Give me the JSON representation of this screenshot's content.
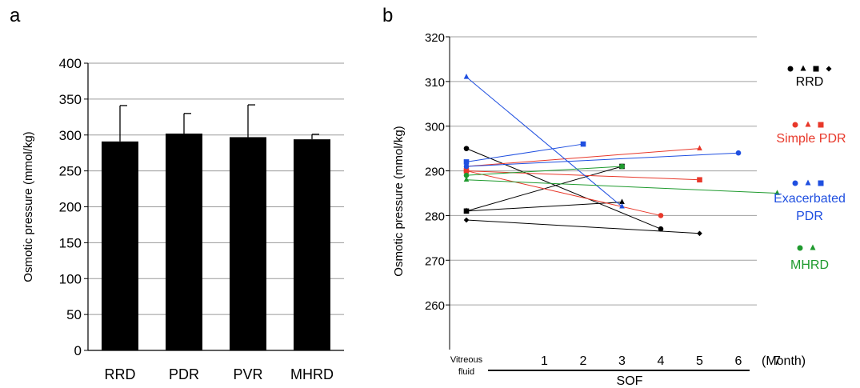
{
  "panels": {
    "a": "a",
    "b": "b"
  },
  "chart_data": [
    {
      "type": "bar",
      "categories": [
        "RRD",
        "PDR",
        "PVR",
        "MHRD"
      ],
      "values": [
        291,
        302,
        297,
        294
      ],
      "errors": [
        50,
        28,
        45,
        7
      ],
      "ylabel": "Osmotic pressure (mmol/kg)",
      "ylim": [
        0,
        400
      ],
      "yticks": [
        0,
        50,
        100,
        150,
        200,
        250,
        300,
        350,
        400
      ],
      "grid": true,
      "bar_color": "#000000"
    },
    {
      "type": "line",
      "ylabel": "Osmotic pressure (mmol/kg)",
      "ylim": [
        250,
        320
      ],
      "yticks": [
        260,
        270,
        280,
        290,
        300,
        310,
        320
      ],
      "xlim": [
        0,
        7
      ],
      "x_categories": [
        {
          "x": 0,
          "label": "Vitreous fluid"
        },
        {
          "x": 1,
          "label": "1"
        },
        {
          "x": 2,
          "label": "2"
        },
        {
          "x": 3,
          "label": "3"
        },
        {
          "x": 4,
          "label": "4"
        },
        {
          "x": 5,
          "label": "5"
        },
        {
          "x": 6,
          "label": "6"
        },
        {
          "x": 7,
          "label": "7"
        }
      ],
      "x_unit": "(Month)",
      "xlabel": "SOF",
      "grid": true,
      "groups": [
        {
          "name": "RRD",
          "color": "#000000",
          "legend_markers": [
            "circle",
            "triangle",
            "square",
            "diamond"
          ]
        },
        {
          "name": "Simple PDR",
          "color": "#e8382a",
          "legend_markers": [
            "circle",
            "triangle",
            "square"
          ]
        },
        {
          "name": "Exacerbated PDR",
          "color": "#1f4fe0",
          "legend_markers": [
            "circle",
            "triangle",
            "square"
          ]
        },
        {
          "name": "MHRD",
          "color": "#1f9a2e",
          "legend_markers": [
            "circle",
            "triangle"
          ]
        }
      ],
      "series": [
        {
          "group": "RRD",
          "marker": "circle",
          "points": [
            [
              0,
              295
            ],
            [
              4,
              277
            ]
          ]
        },
        {
          "group": "RRD",
          "marker": "triangle",
          "points": [
            [
              0,
              281
            ],
            [
              3,
              283
            ]
          ]
        },
        {
          "group": "RRD",
          "marker": "square",
          "points": [
            [
              0,
              281
            ],
            [
              3,
              291
            ]
          ]
        },
        {
          "group": "RRD",
          "marker": "diamond",
          "points": [
            [
              0,
              279
            ],
            [
              5,
              276
            ]
          ]
        },
        {
          "group": "Simple PDR",
          "marker": "circle",
          "points": [
            [
              0,
              290
            ],
            [
              4,
              280
            ]
          ]
        },
        {
          "group": "Simple PDR",
          "marker": "triangle",
          "points": [
            [
              0,
              291
            ],
            [
              5,
              295
            ]
          ]
        },
        {
          "group": "Simple PDR",
          "marker": "square",
          "points": [
            [
              0,
              290
            ],
            [
              5,
              288
            ]
          ]
        },
        {
          "group": "Exacerbated PDR",
          "marker": "circle",
          "points": [
            [
              0,
              291
            ],
            [
              6,
              294
            ]
          ]
        },
        {
          "group": "Exacerbated PDR",
          "marker": "triangle",
          "points": [
            [
              0,
              311
            ],
            [
              3,
              282
            ]
          ]
        },
        {
          "group": "Exacerbated PDR",
          "marker": "square",
          "points": [
            [
              0,
              292
            ],
            [
              2,
              296
            ]
          ]
        },
        {
          "group": "MHRD",
          "marker": "circle",
          "points": [
            [
              0,
              289
            ],
            [
              3,
              291
            ]
          ]
        },
        {
          "group": "MHRD",
          "marker": "triangle",
          "points": [
            [
              0,
              288
            ],
            [
              7,
              285
            ]
          ]
        }
      ],
      "legend_labels": [
        "RRD",
        "Simple PDR",
        "Exacerbated",
        "PDR",
        "MHRD"
      ]
    }
  ]
}
